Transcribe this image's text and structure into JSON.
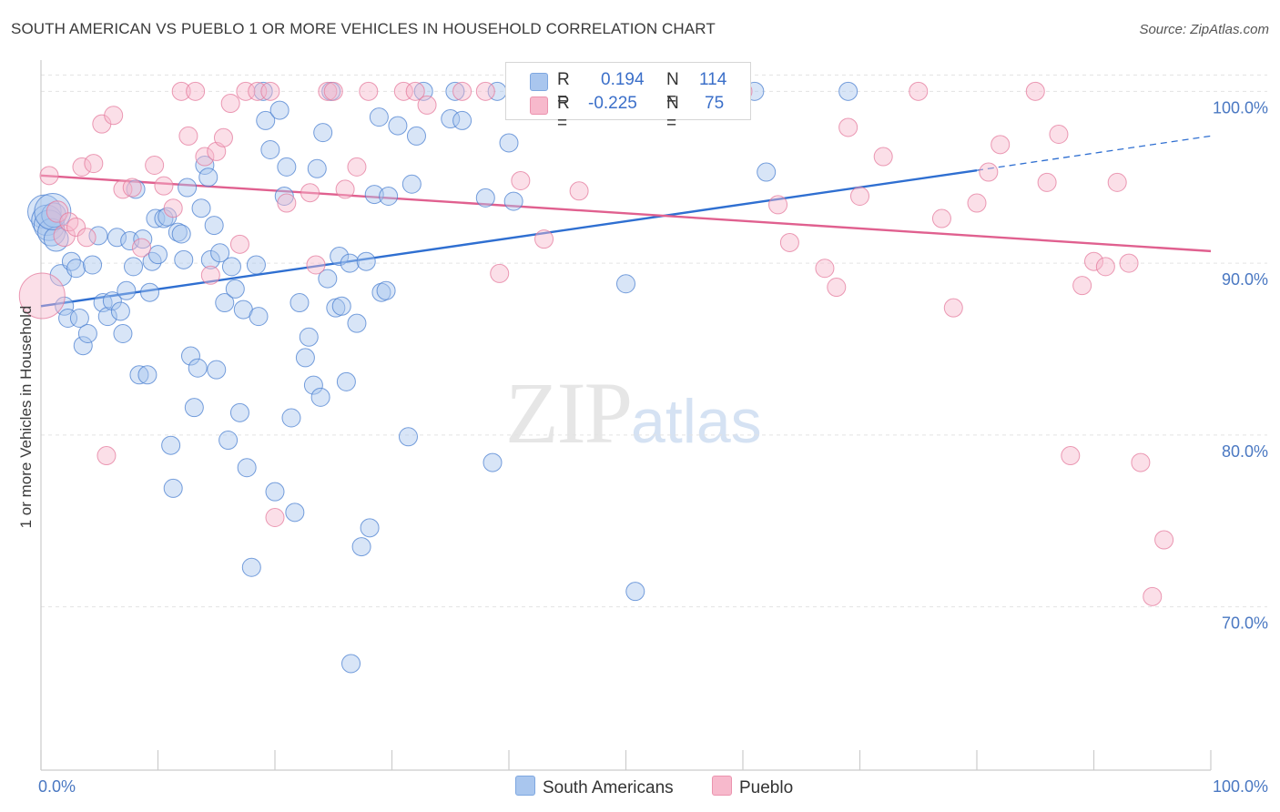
{
  "title": "SOUTH AMERICAN VS PUEBLO 1 OR MORE VEHICLES IN HOUSEHOLD CORRELATION CHART",
  "source": "Source: ZipAtlas.com",
  "watermark": {
    "zip": "ZIP",
    "atlas": "atlas"
  },
  "legend": {
    "r_label": "R =",
    "n_label": "N =",
    "series": [
      {
        "name": "South Americans",
        "r": "0.194",
        "n": "114",
        "color": "#a9c6ee",
        "stroke": "#4a7fd0",
        "line": "#2f6fd1"
      },
      {
        "name": "Pueblo",
        "r": "-0.225",
        "n": "75",
        "color": "#f7b9cc",
        "stroke": "#e4799c",
        "line": "#e0608f"
      }
    ]
  },
  "chart_data": {
    "type": "scatter",
    "title": "SOUTH AMERICAN VS PUEBLO 1 OR MORE VEHICLES IN HOUSEHOLD CORRELATION CHART",
    "xlabel": "",
    "ylabel": "1 or more Vehicles in Household",
    "xlim": [
      0,
      100
    ],
    "ylim": [
      60.5,
      101.5
    ],
    "x_tick_labels": [
      "0.0%",
      "100.0%"
    ],
    "y_ticks": [
      70,
      80,
      90,
      100
    ],
    "y_tick_labels": [
      "70.0%",
      "80.0%",
      "90.0%",
      "100.0%"
    ],
    "grid": true,
    "legend_position": "top-center",
    "series": [
      {
        "name": "South Americans",
        "trend": {
          "x": [
            0,
            80,
            100
          ],
          "y": [
            87.5,
            95.4,
            97.4
          ],
          "solid_until": 80
        },
        "points": [
          [
            0.3,
            93.0
          ],
          [
            0.5,
            92.5
          ],
          [
            0.7,
            92.2
          ],
          [
            0.9,
            91.8
          ],
          [
            1.1,
            92.8
          ],
          [
            1.3,
            91.4
          ],
          [
            1.7,
            89.3
          ],
          [
            2.0,
            87.5
          ],
          [
            2.3,
            86.8
          ],
          [
            2.6,
            90.1
          ],
          [
            3.0,
            89.7
          ],
          [
            3.3,
            86.8
          ],
          [
            3.6,
            85.2
          ],
          [
            4.0,
            85.9
          ],
          [
            4.4,
            89.9
          ],
          [
            4.9,
            91.6
          ],
          [
            5.3,
            87.7
          ],
          [
            5.7,
            86.9
          ],
          [
            6.1,
            87.8
          ],
          [
            6.5,
            91.5
          ],
          [
            6.8,
            87.2
          ],
          [
            7.0,
            85.9
          ],
          [
            7.3,
            88.4
          ],
          [
            7.6,
            91.3
          ],
          [
            7.9,
            89.8
          ],
          [
            8.1,
            94.3
          ],
          [
            8.4,
            83.5
          ],
          [
            8.7,
            91.4
          ],
          [
            9.1,
            83.5
          ],
          [
            9.3,
            88.3
          ],
          [
            9.5,
            90.1
          ],
          [
            9.8,
            92.6
          ],
          [
            10.0,
            90.5
          ],
          [
            10.5,
            92.6
          ],
          [
            10.8,
            92.7
          ],
          [
            11.1,
            79.4
          ],
          [
            11.3,
            76.9
          ],
          [
            11.7,
            91.8
          ],
          [
            12.0,
            91.7
          ],
          [
            12.2,
            90.2
          ],
          [
            12.5,
            94.4
          ],
          [
            12.8,
            84.6
          ],
          [
            13.1,
            81.6
          ],
          [
            13.4,
            83.9
          ],
          [
            13.7,
            93.2
          ],
          [
            14.0,
            95.7
          ],
          [
            14.3,
            95.0
          ],
          [
            14.5,
            90.2
          ],
          [
            14.8,
            92.2
          ],
          [
            15.0,
            83.8
          ],
          [
            15.3,
            90.6
          ],
          [
            15.7,
            87.7
          ],
          [
            16.0,
            79.7
          ],
          [
            16.3,
            89.8
          ],
          [
            16.6,
            88.5
          ],
          [
            17.0,
            81.3
          ],
          [
            17.3,
            87.3
          ],
          [
            17.6,
            78.1
          ],
          [
            18.0,
            72.3
          ],
          [
            18.4,
            89.9
          ],
          [
            18.6,
            86.9
          ],
          [
            19.0,
            100.0
          ],
          [
            19.2,
            98.3
          ],
          [
            19.6,
            96.6
          ],
          [
            20.0,
            76.7
          ],
          [
            20.4,
            98.9
          ],
          [
            20.8,
            93.9
          ],
          [
            21.0,
            95.6
          ],
          [
            21.4,
            81.0
          ],
          [
            21.7,
            75.5
          ],
          [
            22.1,
            87.7
          ],
          [
            22.6,
            84.5
          ],
          [
            22.9,
            85.7
          ],
          [
            23.3,
            82.9
          ],
          [
            23.6,
            95.5
          ],
          [
            23.9,
            82.2
          ],
          [
            24.1,
            97.6
          ],
          [
            24.5,
            89.1
          ],
          [
            24.8,
            100.0
          ],
          [
            25.2,
            87.4
          ],
          [
            25.5,
            90.4
          ],
          [
            25.7,
            87.5
          ],
          [
            26.1,
            83.1
          ],
          [
            26.4,
            90.0
          ],
          [
            27.0,
            86.5
          ],
          [
            27.4,
            73.5
          ],
          [
            27.8,
            90.1
          ],
          [
            28.1,
            74.6
          ],
          [
            28.5,
            94.0
          ],
          [
            28.9,
            98.5
          ],
          [
            29.1,
            88.3
          ],
          [
            29.5,
            88.4
          ],
          [
            29.7,
            93.9
          ],
          [
            30.5,
            98.0
          ],
          [
            31.4,
            79.9
          ],
          [
            31.7,
            94.6
          ],
          [
            32.1,
            97.4
          ],
          [
            32.7,
            100.0
          ],
          [
            35.0,
            98.4
          ],
          [
            35.4,
            100.0
          ],
          [
            36.0,
            98.3
          ],
          [
            38.0,
            93.8
          ],
          [
            38.6,
            78.4
          ],
          [
            39.0,
            100.0
          ],
          [
            40.0,
            97.0
          ],
          [
            40.4,
            93.6
          ],
          [
            41.0,
            100.0
          ],
          [
            50.0,
            88.8
          ],
          [
            50.8,
            70.9
          ],
          [
            61.0,
            100.0
          ],
          [
            62.0,
            95.3
          ],
          [
            69.0,
            100.0
          ],
          [
            26.5,
            66.7
          ],
          [
            1.0,
            93.0
          ]
        ],
        "sizes": [
          22,
          20,
          20,
          18,
          16,
          16,
          14,
          12,
          12,
          12,
          12,
          12,
          12,
          12,
          12,
          12,
          12,
          12,
          12,
          12,
          12,
          12,
          12,
          12,
          12,
          12,
          12,
          12,
          12,
          12,
          12,
          12,
          12,
          12,
          12,
          12,
          12,
          12,
          12,
          12,
          12,
          12,
          12,
          12,
          12,
          12,
          12,
          12,
          12,
          12,
          12,
          12,
          12,
          12,
          12,
          12,
          12,
          12,
          12,
          12,
          12,
          12,
          12,
          12,
          12,
          12,
          12,
          12,
          12,
          12,
          12,
          12,
          12,
          12,
          12,
          12,
          12,
          12,
          12,
          12,
          12,
          12,
          12,
          12,
          12,
          12,
          12,
          12,
          12,
          12,
          12,
          12,
          12,
          12,
          12,
          12,
          12,
          12,
          12,
          12,
          12,
          12,
          12,
          12,
          12,
          12,
          12,
          12,
          12,
          12,
          12,
          12,
          12,
          24
        ]
      },
      {
        "name": "Pueblo",
        "trend": {
          "x": [
            0,
            100
          ],
          "y": [
            95.1,
            90.7
          ]
        },
        "points": [
          [
            0.1,
            88.1
          ],
          [
            0.7,
            95.1
          ],
          [
            1.4,
            93.0
          ],
          [
            2.0,
            91.6
          ],
          [
            2.4,
            92.4
          ],
          [
            3.0,
            92.1
          ],
          [
            3.5,
            95.6
          ],
          [
            3.9,
            91.5
          ],
          [
            4.5,
            95.8
          ],
          [
            5.2,
            98.1
          ],
          [
            5.6,
            78.8
          ],
          [
            6.2,
            98.6
          ],
          [
            7.0,
            94.3
          ],
          [
            7.8,
            94.4
          ],
          [
            8.6,
            90.9
          ],
          [
            9.7,
            95.7
          ],
          [
            10.5,
            94.5
          ],
          [
            11.3,
            93.2
          ],
          [
            12.0,
            100.0
          ],
          [
            12.6,
            97.4
          ],
          [
            13.2,
            100.0
          ],
          [
            14.0,
            96.2
          ],
          [
            14.5,
            89.3
          ],
          [
            15.0,
            96.5
          ],
          [
            15.6,
            97.3
          ],
          [
            16.2,
            99.3
          ],
          [
            17.0,
            91.1
          ],
          [
            17.5,
            100.0
          ],
          [
            18.5,
            100.0
          ],
          [
            19.6,
            100.0
          ],
          [
            20.0,
            75.2
          ],
          [
            21.0,
            93.5
          ],
          [
            23.0,
            94.1
          ],
          [
            23.5,
            89.9
          ],
          [
            24.5,
            100.0
          ],
          [
            25.0,
            100.0
          ],
          [
            26.0,
            94.3
          ],
          [
            27.0,
            95.6
          ],
          [
            28.0,
            100.0
          ],
          [
            31.0,
            100.0
          ],
          [
            32.0,
            100.0
          ],
          [
            33.0,
            99.2
          ],
          [
            36.0,
            100.0
          ],
          [
            38.0,
            100.0
          ],
          [
            39.2,
            89.4
          ],
          [
            41.0,
            94.8
          ],
          [
            43.0,
            91.4
          ],
          [
            46.0,
            94.2
          ],
          [
            49.0,
            100.0
          ],
          [
            60.0,
            100.0
          ],
          [
            63.0,
            93.4
          ],
          [
            64.0,
            91.2
          ],
          [
            67.0,
            89.7
          ],
          [
            68.0,
            88.6
          ],
          [
            69.0,
            97.9
          ],
          [
            70.0,
            93.9
          ],
          [
            72.0,
            96.2
          ],
          [
            75.0,
            100.0
          ],
          [
            77.0,
            92.6
          ],
          [
            78.0,
            87.4
          ],
          [
            80.0,
            93.5
          ],
          [
            81.0,
            95.3
          ],
          [
            82.0,
            96.9
          ],
          [
            85.0,
            100.0
          ],
          [
            86.0,
            94.7
          ],
          [
            87.0,
            97.5
          ],
          [
            88.0,
            78.8
          ],
          [
            89.0,
            88.7
          ],
          [
            90.0,
            90.1
          ],
          [
            91.0,
            89.8
          ],
          [
            92.0,
            94.7
          ],
          [
            93.0,
            90.0
          ],
          [
            94.0,
            78.4
          ],
          [
            95.0,
            70.6
          ],
          [
            96.0,
            73.9
          ]
        ],
        "sizes": [
          30,
          12,
          14,
          14,
          12,
          12,
          12,
          12,
          12,
          12,
          12,
          12,
          12,
          12,
          12,
          12,
          12,
          12,
          12,
          12,
          12,
          12,
          12,
          12,
          12,
          12,
          12,
          12,
          12,
          12,
          12,
          12,
          12,
          12,
          12,
          12,
          12,
          12,
          12,
          12,
          12,
          12,
          12,
          12,
          12,
          12,
          12,
          12,
          12,
          12,
          12,
          12,
          12,
          12,
          12,
          12,
          12,
          12,
          12,
          12,
          12,
          12,
          12,
          12,
          12,
          12,
          12,
          12,
          12,
          12,
          12,
          12,
          12,
          12,
          12
        ]
      }
    ]
  }
}
